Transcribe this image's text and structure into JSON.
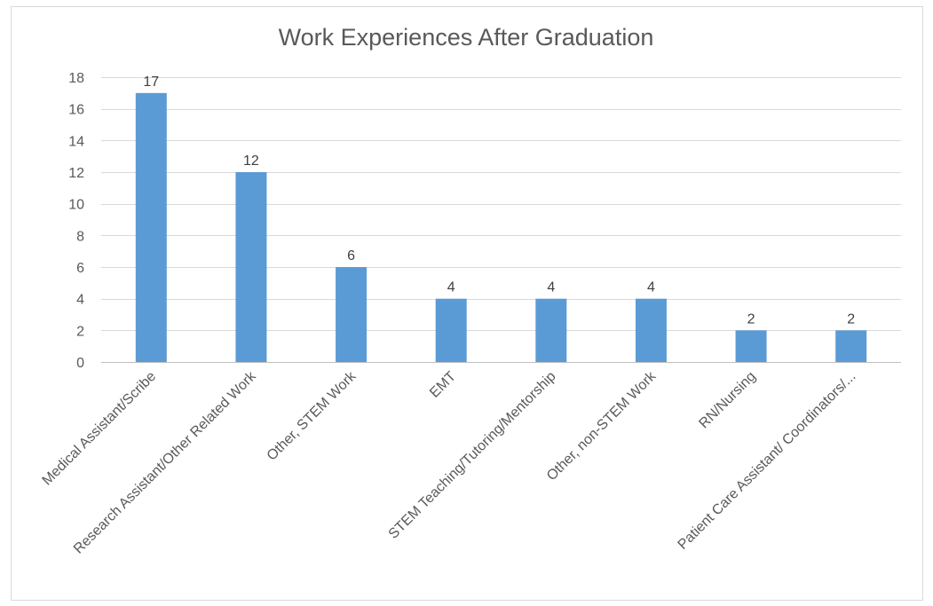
{
  "chart_data": {
    "type": "bar",
    "title": "Work Experiences After Graduation",
    "xlabel": "",
    "ylabel": "",
    "categories": [
      "Medical Assistant/Scribe",
      "Research Assistant/Other Related Work",
      "Other, STEM Work",
      "EMT",
      "STEM Teaching/Tutoring/Mentorship",
      "Other, non-STEM Work",
      "RN/Nursing",
      "Patient Care Assistant/ Coordinators/..."
    ],
    "values": [
      17,
      12,
      6,
      4,
      4,
      4,
      2,
      2
    ],
    "data_labels": [
      "17",
      "12",
      "6",
      "4",
      "4",
      "4",
      "2",
      "2"
    ],
    "ylim": [
      0,
      18
    ],
    "yticks": [
      0,
      2,
      4,
      6,
      8,
      10,
      12,
      14,
      16,
      18
    ],
    "grid": true,
    "legend": "none",
    "colors": {
      "bar": "#5b9bd5",
      "grid": "#d9d9d9",
      "border": "#d9d9d9",
      "text": "#595959"
    }
  }
}
